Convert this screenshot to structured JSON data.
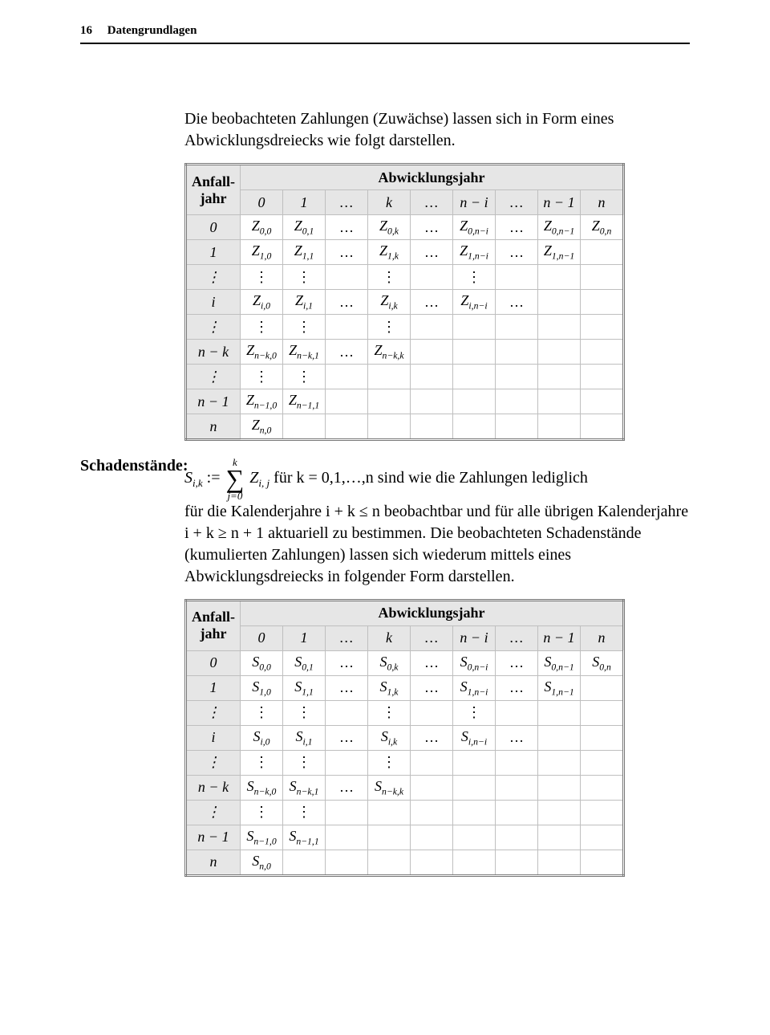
{
  "header": {
    "page_number": "16",
    "chapter": "Datengrundlagen"
  },
  "intro": "Die beobachteten Zahlungen (Zuwächse) lassen sich in Form eines Abwicklungsdreiecks wie folgt darstellen.",
  "table_labels": {
    "row_header": "Anfall-jahr",
    "col_header": "Abwicklungsjahr"
  },
  "triangle1": {
    "symbol": "Z",
    "cols": [
      "0",
      "1",
      "…",
      "k",
      "…",
      "n − i",
      "…",
      "n − 1",
      "n"
    ],
    "rows": [
      {
        "label": "0",
        "cells": [
          "Z|0,0",
          "Z|0,1",
          "…",
          "Z|0,k",
          "…",
          "Z|0,n−i",
          "…",
          "Z|0,n−1",
          "Z|0,n"
        ]
      },
      {
        "label": "1",
        "cells": [
          "Z|1,0",
          "Z|1,1",
          "…",
          "Z|1,k",
          "…",
          "Z|1,n−i",
          "…",
          "Z|1,n−1",
          ""
        ]
      },
      {
        "label": "⋮",
        "cells": [
          "⋮",
          "⋮",
          "",
          "⋮",
          "",
          "⋮",
          "",
          "",
          ""
        ]
      },
      {
        "label": "i",
        "cells": [
          "Z|i,0",
          "Z|i,1",
          "…",
          "Z|i,k",
          "…",
          "Z|i,n−i",
          "…",
          "",
          ""
        ]
      },
      {
        "label": "⋮",
        "cells": [
          "⋮",
          "⋮",
          "",
          "⋮",
          "",
          "",
          "",
          "",
          ""
        ]
      },
      {
        "label": "n − k",
        "cells": [
          "Z|n−k,0",
          "Z|n−k,1",
          "…",
          "Z|n−k,k",
          "",
          "",
          "",
          "",
          ""
        ]
      },
      {
        "label": "⋮",
        "cells": [
          "⋮",
          "⋮",
          "",
          "",
          "",
          "",
          "",
          "",
          ""
        ]
      },
      {
        "label": "n − 1",
        "cells": [
          "Z|n−1,0",
          "Z|n−1,1",
          "",
          "",
          "",
          "",
          "",
          "",
          ""
        ]
      },
      {
        "label": "n",
        "cells": [
          "Z|n,0",
          "",
          "",
          "",
          "",
          "",
          "",
          "",
          ""
        ]
      }
    ]
  },
  "schaden": {
    "label": "Schadenstände:",
    "formula_lhs": "S",
    "formula_lhs_sub": "i,k",
    "assign": ":=",
    "sum_top": "k",
    "sum_bot": "j=0",
    "summand": "Z",
    "summand_sub": "i, j",
    "tail1": "  für k = 0,1,…,n sind wie die Zahlungen lediglich",
    "para": "für die Kalenderjahre i + k ≤ n beobachtbar und für alle übrigen Kalenderjahre i + k ≥ n + 1 aktuariell zu bestimmen. Die beobachteten Schadenstände (kumulierten Zahlungen) lassen sich wiederum mittels eines Abwicklungsdreiecks in folgender Form darstellen."
  },
  "triangle2": {
    "symbol": "S",
    "cols": [
      "0",
      "1",
      "…",
      "k",
      "…",
      "n − i",
      "…",
      "n − 1",
      "n"
    ],
    "rows": [
      {
        "label": "0",
        "cells": [
          "S|0,0",
          "S|0,1",
          "…",
          "S|0,k",
          "…",
          "S|0,n−i",
          "…",
          "S|0,n−1",
          "S|0,n"
        ]
      },
      {
        "label": "1",
        "cells": [
          "S|1,0",
          "S|1,1",
          "…",
          "S|1,k",
          "…",
          "S|1,n−i",
          "…",
          "S|1,n−1",
          ""
        ]
      },
      {
        "label": "⋮",
        "cells": [
          "⋮",
          "⋮",
          "",
          "⋮",
          "",
          "⋮",
          "",
          "",
          ""
        ]
      },
      {
        "label": "i",
        "cells": [
          "S|i,0",
          "S|i,1",
          "…",
          "S|i,k",
          "…",
          "S|i,n−i",
          "…",
          "",
          ""
        ]
      },
      {
        "label": "⋮",
        "cells": [
          "⋮",
          "⋮",
          "",
          "⋮",
          "",
          "",
          "",
          "",
          ""
        ]
      },
      {
        "label": "n − k",
        "cells": [
          "S|n−k,0",
          "S|n−k,1",
          "…",
          "S|n−k,k",
          "",
          "",
          "",
          "",
          ""
        ]
      },
      {
        "label": "⋮",
        "cells": [
          "⋮",
          "⋮",
          "",
          "",
          "",
          "",
          "",
          "",
          ""
        ]
      },
      {
        "label": "n − 1",
        "cells": [
          "S|n−1,0",
          "S|n−1,1",
          "",
          "",
          "",
          "",
          "",
          "",
          ""
        ]
      },
      {
        "label": "n",
        "cells": [
          "S|n,0",
          "",
          "",
          "",
          "",
          "",
          "",
          "",
          ""
        ]
      }
    ]
  },
  "style": {
    "header_bg": "#e6e6e6",
    "border_color": "#bfbfbf",
    "text_color": "#000000",
    "body_fontsize": 20,
    "table_fontsize": 18
  }
}
